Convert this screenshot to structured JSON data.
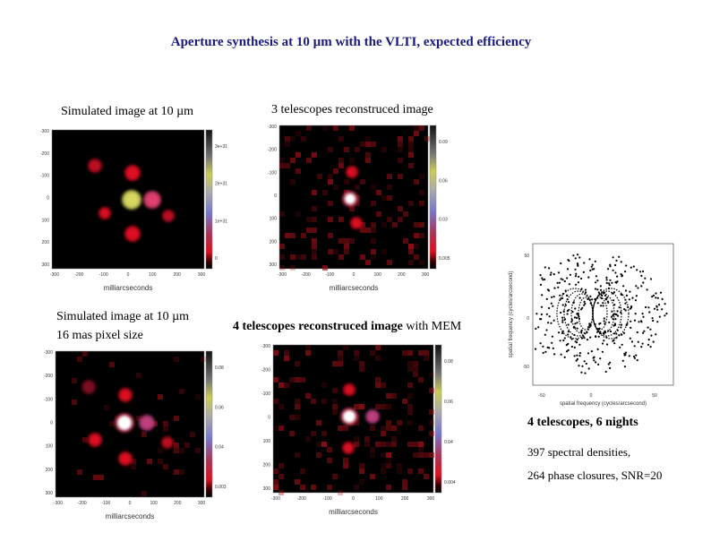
{
  "title": "Aperture synthesis at 10 µm with the VLTI, expected efficiency",
  "panels": [
    {
      "caption": [
        "Simulated image at 10 µm"
      ],
      "xlabel": "milliarcseconds",
      "xticks": [
        -300,
        -200,
        -100,
        0,
        100,
        200,
        300
      ],
      "yticks": [
        -300,
        -200,
        -100,
        0,
        100,
        200,
        300
      ],
      "colorbar": [
        "3e+31",
        "2e+31",
        "1e+31",
        0
      ]
    },
    {
      "caption": [
        "3 telescopes reconstruced image"
      ],
      "xlabel": "milliarcseconds",
      "xticks": [
        -300,
        -200,
        -100,
        0,
        100,
        200,
        300
      ],
      "yticks": [
        -300,
        -200,
        -100,
        0,
        100,
        200,
        300
      ],
      "colorbar": [
        0.09,
        0.06,
        0.03,
        0.005
      ]
    },
    {
      "caption": [
        "Simulated image at 10 µm",
        "16 mas pixel size"
      ],
      "xlabel": "milliarcseconds",
      "xticks": [
        -300,
        -200,
        -100,
        0,
        100,
        200,
        300
      ],
      "yticks": [
        -300,
        -200,
        -100,
        0,
        100,
        200,
        300
      ],
      "colorbar": [
        0.08,
        0.06,
        0.04,
        0.003
      ]
    },
    {
      "caption": [
        "4 telescopes reconstruced image",
        " with MEM"
      ],
      "xlabel": "milliarcseconds",
      "xticks": [
        -300,
        -200,
        -100,
        0,
        100,
        200,
        300
      ],
      "yticks": [
        -300,
        -200,
        -100,
        0,
        100,
        200,
        300
      ],
      "colorbar": [
        0.08,
        0.06,
        0.04,
        0.004
      ]
    }
  ],
  "uv": {
    "xlabel": "spatial frequency (cycles/arcsecond)",
    "ylabel": "spatial frequency (cycles/arcsecond)",
    "xticks": [
      -50,
      0,
      50
    ],
    "yticks": [
      50,
      0,
      -50
    ]
  },
  "notes": [
    "4 telescopes, 6 nights",
    "397 spectral densities,",
    "264 phase closures, SNR=20"
  ]
}
